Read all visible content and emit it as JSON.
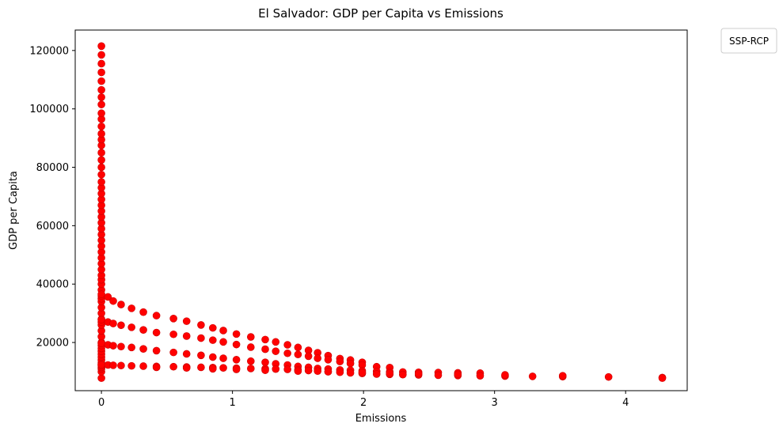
{
  "chart_data": {
    "type": "scatter",
    "title": "El Salvador: GDP per Capita vs Emissions",
    "xlabel": "Emissions",
    "ylabel": "GDP per Capita",
    "xlim": [
      -0.2,
      4.47
    ],
    "ylim": [
      3500,
      127000
    ],
    "xticks": [
      0,
      1,
      2,
      3,
      4
    ],
    "yticks": [
      20000,
      40000,
      60000,
      80000,
      100000,
      120000
    ],
    "grid": false,
    "legend": {
      "title": "SSP-RCP",
      "placement": "outside-top-right",
      "entries": []
    },
    "marker_color": "#ff0000",
    "point_x": [
      0,
      0,
      0,
      0,
      0,
      0,
      0,
      0,
      0,
      0,
      0,
      0,
      0,
      0,
      0,
      0,
      0,
      0,
      0,
      0,
      0,
      0,
      0,
      0,
      0,
      0,
      0,
      0,
      0,
      0,
      0,
      0,
      0,
      0,
      0,
      0,
      0,
      0,
      0,
      0,
      0,
      0,
      0,
      0,
      0,
      0,
      0,
      0,
      0,
      0,
      0,
      0,
      0,
      0,
      0,
      0,
      0,
      0,
      0,
      0,
      0,
      0,
      0,
      0,
      0,
      0,
      0.05,
      0.09,
      0.15,
      0.23,
      0.32,
      0.42,
      0.55,
      0.65,
      0.76,
      0.85,
      0.93,
      1.03,
      1.14,
      1.25,
      1.33,
      1.42,
      1.5,
      1.58,
      1.65,
      1.73,
      1.82,
      1.9,
      1.99,
      0.05,
      0.09,
      0.15,
      0.23,
      0.32,
      0.42,
      0.55,
      0.65,
      0.76,
      0.85,
      0.93,
      1.03,
      1.14,
      1.25,
      1.33,
      1.42,
      1.5,
      1.58,
      1.65,
      1.73,
      1.82,
      1.9,
      1.99,
      2.1,
      2.2,
      0.05,
      0.09,
      0.15,
      0.23,
      0.32,
      0.42,
      0.55,
      0.65,
      0.76,
      0.85,
      0.93,
      1.03,
      1.14,
      1.25,
      1.33,
      1.42,
      1.5,
      1.58,
      1.65,
      1.73,
      1.82,
      1.9,
      1.99,
      2.1,
      2.2,
      2.3,
      2.42,
      2.57,
      2.72,
      2.89,
      0.05,
      0.09,
      0.15,
      0.23,
      0.32,
      0.42,
      0.55,
      0.65,
      0.76,
      0.85,
      0.93,
      1.03,
      1.14,
      1.25,
      1.33,
      1.42,
      1.5,
      1.58,
      1.65,
      1.73,
      1.82,
      1.9,
      1.99,
      2.1,
      2.2,
      2.3,
      2.42,
      2.57,
      2.72,
      2.89,
      3.08,
      3.29,
      3.52,
      3.87,
      4.28,
      0.42,
      0.65,
      0.85,
      1.03,
      1.25,
      1.5,
      1.73,
      1.99,
      2.2,
      2.42,
      2.72,
      3.08,
      3.52,
      4.28
    ],
    "point_y": [
      7800,
      10000,
      11000,
      11500,
      12000,
      12500,
      13000,
      14000,
      15000,
      16000,
      17000,
      18000,
      19000,
      20000,
      22000,
      24000,
      26000,
      27000,
      28000,
      30000,
      32000,
      34000,
      35000,
      36000,
      38000,
      40000,
      41500,
      43000,
      45000,
      47000,
      49000,
      51000,
      53000,
      55000,
      57000,
      59000,
      61000,
      63000,
      65000,
      67000,
      69000,
      71000,
      73000,
      75000,
      77500,
      80000,
      82500,
      85000,
      87500,
      89500,
      91500,
      94000,
      96500,
      98500,
      101500,
      104000,
      106500,
      109500,
      112500,
      115500,
      118500,
      121500,
      36500,
      27800,
      19700,
      12400,
      35600,
      34200,
      33000,
      31700,
      30400,
      29200,
      28200,
      27300,
      26000,
      25000,
      24100,
      22900,
      21900,
      21000,
      20200,
      19200,
      18300,
      17300,
      16500,
      15500,
      14500,
      14000,
      13200,
      27000,
      26500,
      25900,
      25200,
      24300,
      23400,
      22800,
      22200,
      21500,
      20800,
      20200,
      19300,
      18400,
      17700,
      17000,
      16300,
      15900,
      15300,
      14600,
      14100,
      13500,
      12800,
      12300,
      11700,
      11400,
      19200,
      18900,
      18600,
      18300,
      17800,
      17200,
      16600,
      16100,
      15600,
      15000,
      14600,
      14100,
      13600,
      13200,
      12700,
      12300,
      11800,
      11500,
      11100,
      10900,
      10600,
      10500,
      10300,
      10100,
      10000,
      9900,
      9800,
      9700,
      9600,
      9500,
      12300,
      12200,
      12100,
      12000,
      11900,
      11800,
      11700,
      11600,
      11500,
      11400,
      11300,
      11200,
      11100,
      11000,
      10900,
      10800,
      10600,
      10400,
      10200,
      10000,
      9800,
      9600,
      9400,
      9200,
      9100,
      9000,
      8900,
      8800,
      8700,
      8600,
      8500,
      8400,
      8300,
      8200,
      8000,
      11500,
      11300,
      11000,
      10800,
      10500,
      10200,
      10000,
      9700,
      9500,
      9300,
      9100,
      8900,
      8600,
      7800
    ]
  }
}
